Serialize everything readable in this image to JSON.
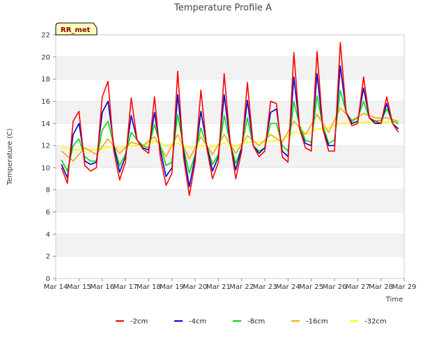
{
  "chart_data": {
    "type": "line",
    "title": "Temperature Profile A",
    "xlabel": "Time",
    "ylabel": "Temperature (C)",
    "badge": "RR_met",
    "ylim": [
      0,
      22
    ],
    "yticks": [
      0,
      2,
      4,
      6,
      8,
      10,
      12,
      14,
      16,
      18,
      20,
      22
    ],
    "xlim": [
      "2024-03-14",
      "2024-03-29"
    ],
    "xticks": [
      "Mar 14",
      "Mar 15",
      "Mar 16",
      "Mar 17",
      "Mar 18",
      "Mar 19",
      "Mar 20",
      "Mar 21",
      "Mar 22",
      "Mar 23",
      "Mar 24",
      "Mar 25",
      "Mar 26",
      "Mar 27",
      "Mar 28",
      "Mar 29"
    ],
    "grid": "horizontal bands",
    "legend_position": "bottom",
    "series": [
      {
        "name": "-2cm",
        "color": "#ff0000",
        "x": [
          "2024-03-14 06:00",
          "2024-03-14 12:00",
          "2024-03-14 18:00",
          "2024-03-15 00:00",
          "2024-03-15 06:00",
          "2024-03-15 12:00",
          "2024-03-15 18:00",
          "2024-03-16 00:00",
          "2024-03-16 06:00",
          "2024-03-16 12:00",
          "2024-03-16 18:00",
          "2024-03-17 00:00",
          "2024-03-17 06:00",
          "2024-03-17 12:00",
          "2024-03-17 18:00",
          "2024-03-18 00:00",
          "2024-03-18 06:00",
          "2024-03-18 12:00",
          "2024-03-18 18:00",
          "2024-03-19 00:00",
          "2024-03-19 06:00",
          "2024-03-19 12:00",
          "2024-03-19 18:00",
          "2024-03-20 00:00",
          "2024-03-20 06:00",
          "2024-03-20 12:00",
          "2024-03-20 18:00",
          "2024-03-21 00:00",
          "2024-03-21 06:00",
          "2024-03-21 12:00",
          "2024-03-21 18:00",
          "2024-03-22 00:00",
          "2024-03-22 06:00",
          "2024-03-22 12:00",
          "2024-03-22 18:00",
          "2024-03-23 00:00",
          "2024-03-23 06:00",
          "2024-03-23 12:00",
          "2024-03-23 18:00",
          "2024-03-24 00:00",
          "2024-03-24 06:00",
          "2024-03-24 12:00",
          "2024-03-24 18:00",
          "2024-03-25 00:00",
          "2024-03-25 06:00",
          "2024-03-25 12:00",
          "2024-03-25 18:00",
          "2024-03-26 00:00",
          "2024-03-26 06:00",
          "2024-03-26 12:00",
          "2024-03-26 18:00",
          "2024-03-27 00:00",
          "2024-03-27 06:00",
          "2024-03-27 12:00",
          "2024-03-27 18:00",
          "2024-03-28 00:00",
          "2024-03-28 06:00",
          "2024-03-28 12:00",
          "2024-03-28 18:00"
        ],
        "y": [
          10.0,
          8.6,
          14.2,
          15.1,
          10.2,
          9.7,
          10.0,
          16.4,
          17.8,
          11.5,
          8.9,
          10.5,
          16.3,
          12.5,
          11.7,
          11.3,
          16.4,
          11.0,
          8.4,
          9.5,
          18.7,
          11.0,
          7.5,
          10.5,
          17.0,
          11.8,
          9.0,
          10.5,
          18.5,
          12.5,
          9.0,
          11.5,
          17.7,
          12.0,
          11.0,
          11.5,
          16.0,
          15.8,
          11.0,
          10.5,
          20.4,
          13.5,
          11.8,
          11.5,
          20.5,
          13.5,
          11.5,
          11.5,
          21.3,
          15.0,
          13.8,
          14.0,
          18.2,
          14.5,
          14.2,
          14.0,
          16.4,
          14.0,
          13.2
        ]
      },
      {
        "name": "-4cm",
        "color": "#0000cc",
        "x": [
          "2024-03-14 06:00",
          "2024-03-14 12:00",
          "2024-03-14 18:00",
          "2024-03-15 00:00",
          "2024-03-15 06:00",
          "2024-03-15 12:00",
          "2024-03-15 18:00",
          "2024-03-16 00:00",
          "2024-03-16 06:00",
          "2024-03-16 12:00",
          "2024-03-16 18:00",
          "2024-03-17 00:00",
          "2024-03-17 06:00",
          "2024-03-17 12:00",
          "2024-03-17 18:00",
          "2024-03-18 00:00",
          "2024-03-18 06:00",
          "2024-03-18 12:00",
          "2024-03-18 18:00",
          "2024-03-19 00:00",
          "2024-03-19 06:00",
          "2024-03-19 12:00",
          "2024-03-19 18:00",
          "2024-03-20 00:00",
          "2024-03-20 06:00",
          "2024-03-20 12:00",
          "2024-03-20 18:00",
          "2024-03-21 00:00",
          "2024-03-21 06:00",
          "2024-03-21 12:00",
          "2024-03-21 18:00",
          "2024-03-22 00:00",
          "2024-03-22 06:00",
          "2024-03-22 12:00",
          "2024-03-22 18:00",
          "2024-03-23 00:00",
          "2024-03-23 06:00",
          "2024-03-23 12:00",
          "2024-03-23 18:00",
          "2024-03-24 00:00",
          "2024-03-24 06:00",
          "2024-03-24 12:00",
          "2024-03-24 18:00",
          "2024-03-25 00:00",
          "2024-03-25 06:00",
          "2024-03-25 12:00",
          "2024-03-25 18:00",
          "2024-03-26 00:00",
          "2024-03-26 06:00",
          "2024-03-26 12:00",
          "2024-03-26 18:00",
          "2024-03-27 00:00",
          "2024-03-27 06:00",
          "2024-03-27 12:00",
          "2024-03-27 18:00",
          "2024-03-28 00:00",
          "2024-03-28 06:00",
          "2024-03-28 12:00",
          "2024-03-28 18:00"
        ],
        "y": [
          10.3,
          9.1,
          13.0,
          14.0,
          10.6,
          10.3,
          10.5,
          15.0,
          16.0,
          12.0,
          9.6,
          11.0,
          14.7,
          12.5,
          11.8,
          11.6,
          15.0,
          11.6,
          9.2,
          10.0,
          16.6,
          11.5,
          8.3,
          11.0,
          15.1,
          12.0,
          9.7,
          11.0,
          16.6,
          12.3,
          9.8,
          11.8,
          16.1,
          12.0,
          11.3,
          11.8,
          15.0,
          15.3,
          11.5,
          11.0,
          18.2,
          13.5,
          12.2,
          12.0,
          18.5,
          13.5,
          12.0,
          12.0,
          19.2,
          15.0,
          14.0,
          14.2,
          17.2,
          14.5,
          14.0,
          14.0,
          15.8,
          14.0,
          13.5
        ]
      },
      {
        "name": "-8cm",
        "color": "#00dd00",
        "x": [
          "2024-03-14 06:00",
          "2024-03-14 12:00",
          "2024-03-14 18:00",
          "2024-03-15 00:00",
          "2024-03-15 06:00",
          "2024-03-15 12:00",
          "2024-03-15 18:00",
          "2024-03-16 00:00",
          "2024-03-16 06:00",
          "2024-03-16 12:00",
          "2024-03-16 18:00",
          "2024-03-17 00:00",
          "2024-03-17 06:00",
          "2024-03-17 12:00",
          "2024-03-17 18:00",
          "2024-03-18 00:00",
          "2024-03-18 06:00",
          "2024-03-18 12:00",
          "2024-03-18 18:00",
          "2024-03-19 00:00",
          "2024-03-19 06:00",
          "2024-03-19 12:00",
          "2024-03-19 18:00",
          "2024-03-20 00:00",
          "2024-03-20 06:00",
          "2024-03-20 12:00",
          "2024-03-20 18:00",
          "2024-03-21 00:00",
          "2024-03-21 06:00",
          "2024-03-21 12:00",
          "2024-03-21 18:00",
          "2024-03-22 00:00",
          "2024-03-22 06:00",
          "2024-03-22 12:00",
          "2024-03-22 18:00",
          "2024-03-23 00:00",
          "2024-03-23 06:00",
          "2024-03-23 12:00",
          "2024-03-23 18:00",
          "2024-03-24 00:00",
          "2024-03-24 06:00",
          "2024-03-24 12:00",
          "2024-03-24 18:00",
          "2024-03-25 00:00",
          "2024-03-25 06:00",
          "2024-03-25 12:00",
          "2024-03-25 18:00",
          "2024-03-26 00:00",
          "2024-03-26 06:00",
          "2024-03-26 12:00",
          "2024-03-26 18:00",
          "2024-03-27 00:00",
          "2024-03-27 06:00",
          "2024-03-27 12:00",
          "2024-03-27 18:00",
          "2024-03-28 00:00",
          "2024-03-28 06:00",
          "2024-03-28 12:00",
          "2024-03-28 18:00"
        ],
        "y": [
          10.7,
          9.7,
          12.0,
          12.6,
          11.0,
          10.6,
          10.6,
          13.4,
          14.2,
          12.0,
          10.2,
          11.2,
          13.2,
          12.5,
          12.0,
          11.8,
          13.9,
          12.0,
          10.2,
          10.5,
          14.8,
          11.8,
          9.5,
          11.2,
          13.6,
          12.0,
          10.3,
          11.2,
          14.7,
          12.3,
          10.4,
          11.8,
          14.5,
          12.0,
          11.5,
          11.8,
          14.0,
          14.0,
          12.0,
          11.5,
          16.0,
          13.8,
          12.5,
          12.3,
          16.5,
          13.8,
          12.2,
          12.5,
          17.0,
          15.0,
          14.2,
          14.5,
          16.0,
          14.5,
          14.2,
          14.3,
          15.3,
          14.2,
          14.0
        ]
      },
      {
        "name": "-16cm",
        "color": "#ffa500",
        "x": [
          "2024-03-14 06:00",
          "2024-03-14 18:00",
          "2024-03-15 06:00",
          "2024-03-15 18:00",
          "2024-03-16 06:00",
          "2024-03-16 18:00",
          "2024-03-17 06:00",
          "2024-03-17 18:00",
          "2024-03-18 06:00",
          "2024-03-18 18:00",
          "2024-03-19 06:00",
          "2024-03-19 18:00",
          "2024-03-20 06:00",
          "2024-03-20 18:00",
          "2024-03-21 06:00",
          "2024-03-21 18:00",
          "2024-03-22 06:00",
          "2024-03-22 18:00",
          "2024-03-23 06:00",
          "2024-03-23 18:00",
          "2024-03-24 06:00",
          "2024-03-24 18:00",
          "2024-03-25 06:00",
          "2024-03-25 18:00",
          "2024-03-26 06:00",
          "2024-03-26 18:00",
          "2024-03-27 06:00",
          "2024-03-27 18:00",
          "2024-03-28 06:00",
          "2024-03-28 18:00"
        ],
        "y": [
          11.5,
          10.6,
          11.8,
          11.2,
          12.6,
          11.3,
          12.3,
          12.0,
          12.8,
          11.0,
          13.0,
          10.8,
          12.8,
          11.2,
          13.0,
          11.3,
          12.9,
          12.0,
          13.0,
          12.3,
          14.2,
          13.0,
          14.8,
          13.2,
          15.4,
          14.3,
          14.9,
          14.5,
          14.5,
          14.2
        ]
      },
      {
        "name": "-32cm",
        "color": "#ffff00",
        "x": [
          "2024-03-14 06:00",
          "2024-03-14 18:00",
          "2024-03-15 06:00",
          "2024-03-15 18:00",
          "2024-03-16 06:00",
          "2024-03-16 18:00",
          "2024-03-17 06:00",
          "2024-03-17 18:00",
          "2024-03-18 06:00",
          "2024-03-18 18:00",
          "2024-03-19 06:00",
          "2024-03-19 18:00",
          "2024-03-20 06:00",
          "2024-03-20 18:00",
          "2024-03-21 06:00",
          "2024-03-21 18:00",
          "2024-03-22 06:00",
          "2024-03-22 18:00",
          "2024-03-23 06:00",
          "2024-03-23 18:00",
          "2024-03-24 06:00",
          "2024-03-24 18:00",
          "2024-03-25 06:00",
          "2024-03-25 18:00",
          "2024-03-26 06:00",
          "2024-03-26 18:00",
          "2024-03-27 06:00",
          "2024-03-27 18:00",
          "2024-03-28 06:00",
          "2024-03-28 18:00"
        ],
        "y": [
          11.9,
          11.6,
          11.7,
          11.6,
          11.9,
          11.8,
          12.0,
          12.0,
          12.4,
          12.0,
          12.2,
          11.8,
          12.0,
          11.9,
          12.2,
          12.0,
          12.3,
          12.3,
          12.4,
          12.5,
          13.2,
          13.0,
          13.5,
          13.6,
          14.0,
          14.0,
          14.1,
          14.1,
          14.1,
          14.2
        ]
      }
    ]
  }
}
